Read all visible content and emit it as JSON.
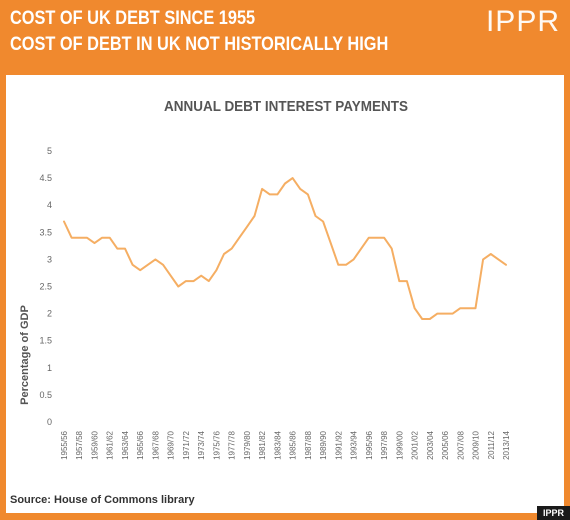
{
  "header": {
    "title_line1": "COST OF UK DEBT SINCE 1955",
    "title_line2": "COST OF DEBT IN UK NOT HISTORICALLY HIGH",
    "logo": "IPPR"
  },
  "footer": {
    "source": "Source: House of Commons library",
    "tag": "IPPR"
  },
  "colors": {
    "background": "#f0892e",
    "line": "#f5ae63",
    "panel": "#ffffff"
  },
  "chart_data": {
    "type": "line",
    "title": "ANNUAL DEBT INTEREST PAYMENTS",
    "xlabel": "",
    "ylabel": "Percentage of GDP",
    "ylim": [
      0,
      5
    ],
    "yticks": [
      "0",
      "0.5",
      "1",
      "1.5",
      "2",
      "2.5",
      "3",
      "3.5",
      "4",
      "4.5",
      "5"
    ],
    "grid": false,
    "xtick_labels": [
      "1955/56",
      "1957/58",
      "1959/60",
      "1961/62",
      "1963/64",
      "1965/66",
      "1967/68",
      "1969/70",
      "1971/72",
      "1973/74",
      "1975/76",
      "1977/78",
      "1979/80",
      "1981/82",
      "1983/84",
      "1985/86",
      "1987/88",
      "1989/90",
      "1991/92",
      "1993/94",
      "1995/96",
      "1997/98",
      "1999/00",
      "2001/02",
      "2003/04",
      "2005/06",
      "2007/08",
      "2009/10",
      "2011/12",
      "2013/14"
    ],
    "series": [
      {
        "values": [
          3.7,
          3.4,
          3.4,
          3.4,
          3.3,
          3.4,
          3.4,
          3.2,
          3.2,
          2.9,
          2.8,
          2.9,
          3.0,
          2.9,
          2.7,
          2.5,
          2.6,
          2.6,
          2.7,
          2.6,
          2.8,
          3.1,
          3.2,
          3.4,
          3.6,
          3.8,
          4.3,
          4.2,
          4.2,
          4.4,
          4.5,
          4.3,
          4.2,
          3.8,
          3.7,
          3.3,
          2.9,
          2.9,
          3.0,
          3.2,
          3.4,
          3.4,
          3.4,
          3.2,
          2.6,
          2.6,
          2.1,
          1.9,
          1.9,
          2.0,
          2.0,
          2.0,
          2.1,
          2.1,
          2.1,
          3.0,
          3.1,
          3.0,
          2.9
        ]
      }
    ]
  }
}
